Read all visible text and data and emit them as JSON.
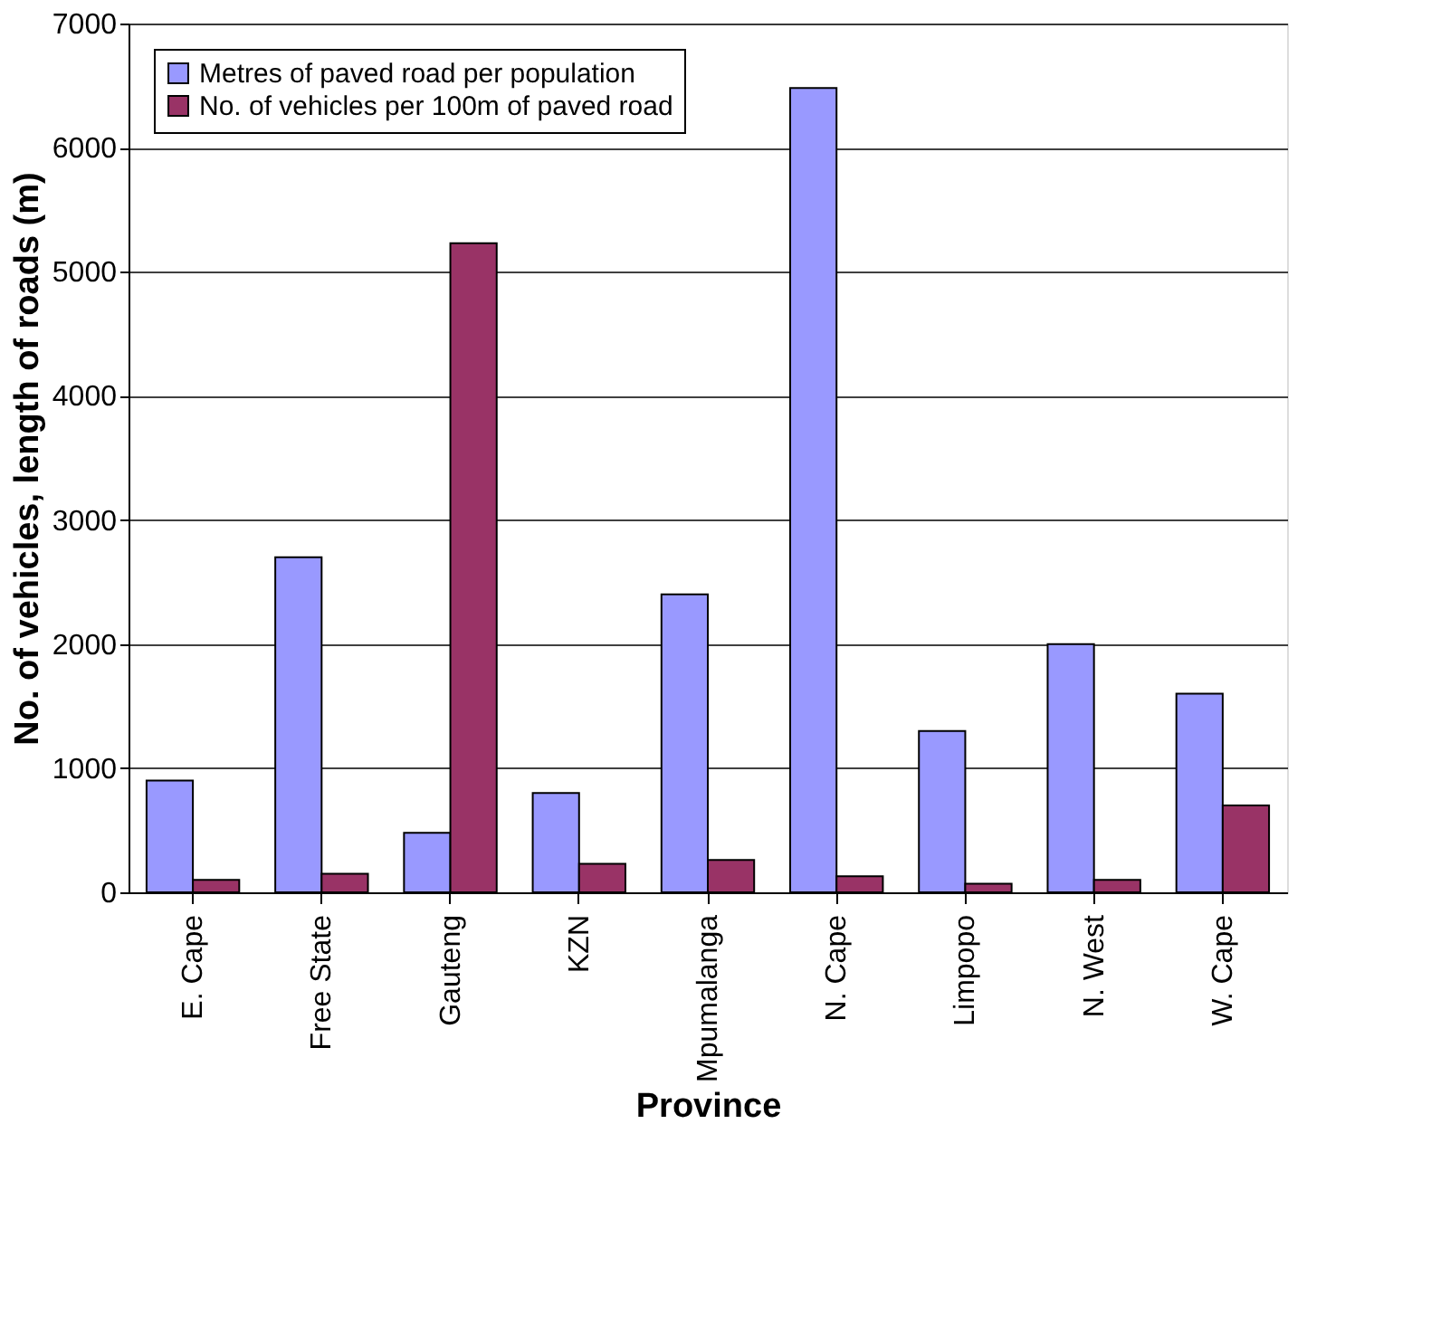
{
  "chart_data": {
    "type": "bar",
    "xlabel": "Province",
    "ylabel": "No. of vehicles, length of roads (m)",
    "categories": [
      "E. Cape",
      "Free State",
      "Gauteng",
      "KZN",
      "Mpumalanga",
      "N. Cape",
      "Limpopo",
      "N. West",
      "W. Cape"
    ],
    "series": [
      {
        "name": "Metres of paved road per population",
        "color": "#9999ff",
        "values": [
          900,
          2700,
          480,
          800,
          2400,
          6480,
          1300,
          2000,
          1600
        ]
      },
      {
        "name": "No. of vehicles per 100m of paved road",
        "color": "#993366",
        "values": [
          100,
          150,
          5230,
          230,
          260,
          130,
          70,
          100,
          700
        ]
      }
    ],
    "ylim": [
      0,
      7000
    ],
    "yticks": [
      0,
      1000,
      2000,
      3000,
      4000,
      5000,
      6000,
      7000
    ],
    "grid": "y",
    "legend": "top left"
  }
}
